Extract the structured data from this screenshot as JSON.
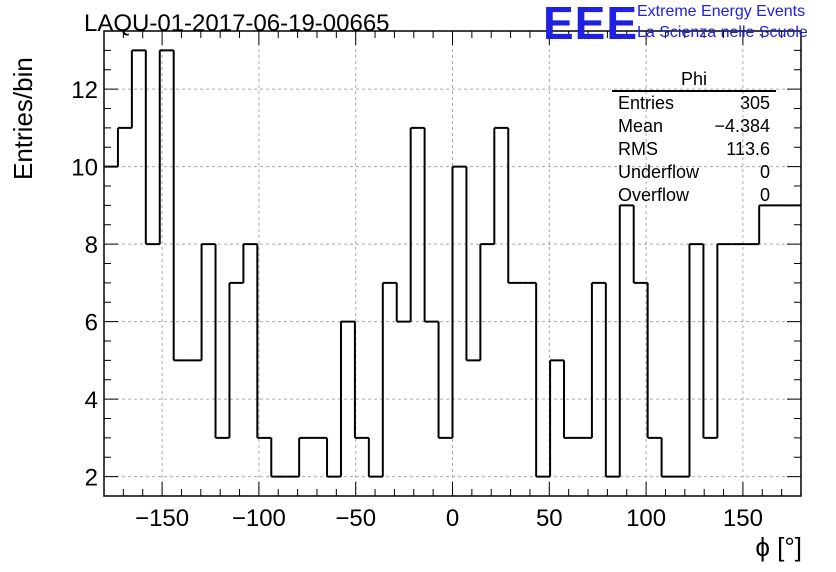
{
  "header": {
    "title": "LAQU-01-2017-06-19-00665",
    "logo_text": "EEE",
    "logo_line1": "Extreme Energy Events",
    "logo_line2": "La Scienza nelle Scuole",
    "logo_color": "#2020e0"
  },
  "stats_box": {
    "name": "Phi",
    "rows": [
      {
        "label": "Entries",
        "value": "305"
      },
      {
        "label": "Mean",
        "value": "−4.384"
      },
      {
        "label": "RMS",
        "value": "113.6"
      },
      {
        "label": "Underflow",
        "value": "0"
      },
      {
        "label": "Overflow",
        "value": "0"
      }
    ]
  },
  "chart_data": {
    "type": "bar",
    "style": "step-histogram",
    "title": "LAQU-01-2017-06-19-00665",
    "xlabel": "ϕ [°]",
    "ylabel": "Entries/bin",
    "xlim": [
      -180,
      180
    ],
    "ylim": [
      1.5,
      13.5
    ],
    "bin_width": 7.2,
    "x_ticks": [
      -150,
      -100,
      -50,
      0,
      50,
      100,
      150
    ],
    "x_tick_labels": [
      "−150",
      "−100",
      "−50",
      "0",
      "50",
      "100",
      "150"
    ],
    "y_ticks": [
      2,
      4,
      6,
      8,
      10,
      12
    ],
    "y_tick_labels": [
      "2",
      "4",
      "6",
      "8",
      "10",
      "12"
    ],
    "grid": true,
    "values": [
      10,
      11,
      13,
      8,
      13,
      5,
      5,
      8,
      3,
      7,
      8,
      3,
      2,
      2,
      3,
      3,
      2,
      6,
      3,
      2,
      7,
      6,
      11,
      6,
      3,
      10,
      5,
      8,
      11,
      7,
      7,
      2,
      5,
      3,
      3,
      7,
      2,
      9,
      7,
      3,
      2,
      2,
      8,
      3,
      8,
      8,
      8,
      9,
      9,
      9
    ],
    "line_color": "#000000"
  }
}
